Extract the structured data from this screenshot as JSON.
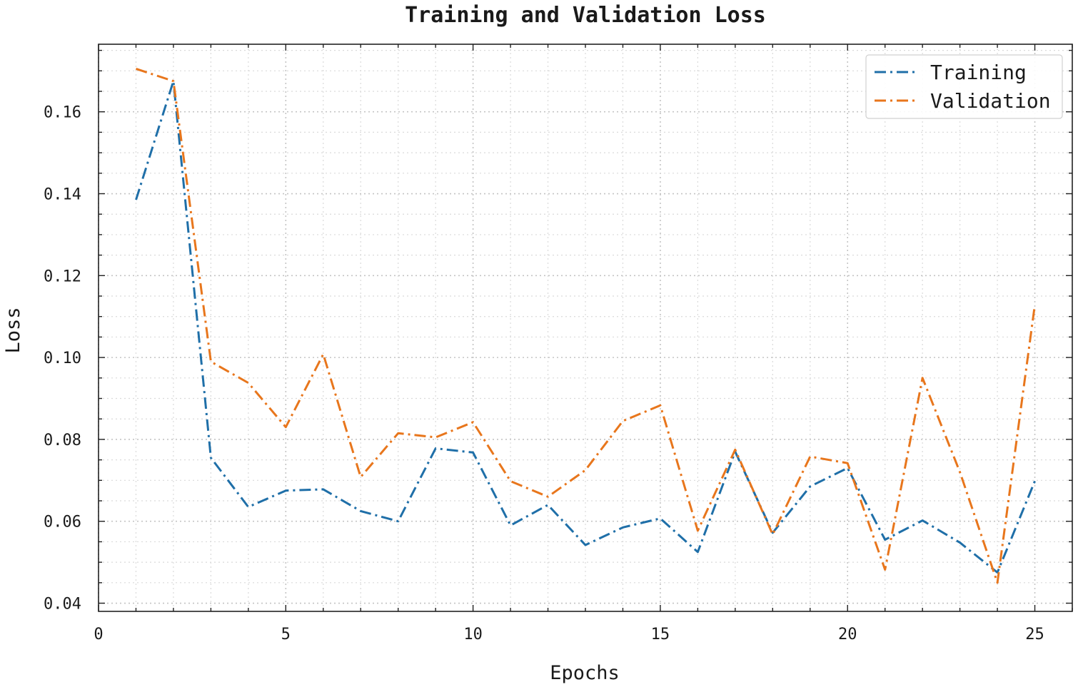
{
  "chart_data": {
    "type": "line",
    "title": "Training and Validation Loss",
    "xlabel": "Epochs",
    "ylabel": "Loss",
    "xlim": [
      0,
      26
    ],
    "ylim": [
      0.038,
      0.1765
    ],
    "x_ticks": [
      0,
      5,
      10,
      15,
      20,
      25
    ],
    "x_tick_labels": [
      "0",
      "5",
      "10",
      "15",
      "20",
      "25"
    ],
    "x_minor_step": 1,
    "y_ticks": [
      0.04,
      0.06,
      0.08,
      0.1,
      0.12,
      0.14,
      0.16
    ],
    "y_tick_labels": [
      "0.04",
      "0.06",
      "0.08",
      "0.10",
      "0.12",
      "0.14",
      "0.16"
    ],
    "y_minor_step": 0.005,
    "grid": true,
    "grid_style": "dotted",
    "legend": "top-right",
    "x": [
      1,
      2,
      3,
      4,
      5,
      6,
      7,
      8,
      9,
      10,
      11,
      12,
      13,
      14,
      15,
      16,
      17,
      18,
      19,
      20,
      21,
      22,
      23,
      24,
      25
    ],
    "series": [
      {
        "name": "Training",
        "color": "#1f6fa8",
        "line_style": "dashdot",
        "values": [
          0.1385,
          0.1675,
          0.0755,
          0.0635,
          0.0675,
          0.0678,
          0.0625,
          0.06,
          0.0778,
          0.0768,
          0.059,
          0.064,
          0.0542,
          0.0585,
          0.0607,
          0.0525,
          0.077,
          0.0572,
          0.0685,
          0.073,
          0.0555,
          0.0602,
          0.0548,
          0.0475,
          0.0698
        ]
      },
      {
        "name": "Validation",
        "color": "#e8761c",
        "line_style": "dashdot",
        "values": [
          0.1705,
          0.1675,
          0.099,
          0.0938,
          0.083,
          0.1008,
          0.0708,
          0.0815,
          0.0805,
          0.0842,
          0.0698,
          0.066,
          0.0725,
          0.0845,
          0.0883,
          0.0577,
          0.0775,
          0.0568,
          0.0758,
          0.0742,
          0.0482,
          0.095,
          0.072,
          0.045,
          0.1128
        ]
      }
    ]
  }
}
